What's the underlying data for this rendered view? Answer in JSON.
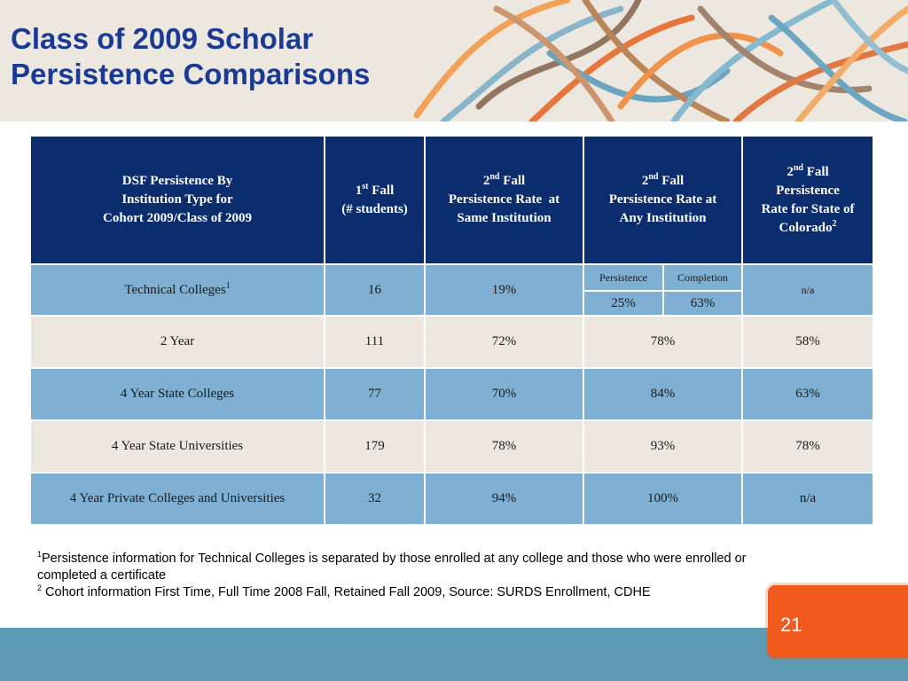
{
  "slide": {
    "title_line1": "Class of 2009 Scholar",
    "title_line2": "Persistence Comparisons",
    "page_number": "21"
  },
  "table": {
    "headers": {
      "col1": [
        "DSF Persistence By",
        "Institution Type for",
        "Cohort 2009/Class of 2009"
      ],
      "col2": {
        "num": "1",
        "sup": "st",
        "l1": " Fall",
        "l2": "(# students)"
      },
      "col3": {
        "num": "2",
        "sup": "nd",
        "l1": " Fall",
        "l2": "Persistence Rate  at",
        "l3": "Same Institution"
      },
      "col4": {
        "num": "2",
        "sup": "nd",
        "l1": " Fall",
        "l2": "Persistence Rate at",
        "l3": "Any Institution"
      },
      "col5": {
        "num": "2",
        "sup": "nd",
        "l1": " Fall",
        "l2": "Persistence",
        "l3": "Rate for State of",
        "l4": "Colorado",
        "l4_sup": "2"
      }
    },
    "technical": {
      "name": "Technical Colleges",
      "name_sup": "1",
      "students": "16",
      "same_rate": "19%",
      "sub_persistence_label": "Persistence",
      "sub_completion_label": "Completion",
      "persistence": "25%",
      "completion": "63%",
      "state_rate": "n/a"
    },
    "rows": [
      {
        "name": "2 Year",
        "students": "111",
        "same_rate": "72%",
        "any_rate": "78%",
        "state_rate": "58%"
      },
      {
        "name": "4 Year State Colleges",
        "students": "77",
        "same_rate": "70%",
        "any_rate": "84%",
        "state_rate": "63%"
      },
      {
        "name": "4 Year State Universities",
        "students": "179",
        "same_rate": "78%",
        "any_rate": "93%",
        "state_rate": "78%"
      },
      {
        "name": "4 Year Private Colleges and Universities",
        "students": "32",
        "same_rate": "94%",
        "any_rate": "100%",
        "state_rate": "n/a"
      }
    ]
  },
  "footnotes": {
    "f1_mark": "1",
    "f1_text": "Persistence information for Technical Colleges  is separated by those enrolled at any college and those who were enrolled or completed a certificate",
    "f2_mark": "2",
    "f2_text": " Cohort information First Time, Full Time 2008 Fall, Retained Fall 2009, Source: SURDS Enrollment, CDHE"
  },
  "colors": {
    "title": "#1b3a93",
    "header_fill": "#0b2d6e",
    "row_blue": "#7fafd2",
    "row_beige": "#ece7df",
    "bottom_band": "#5b9bb4",
    "page_box": "#f05a1c"
  },
  "decor": {
    "name": "abstract-ribbons-graphic"
  }
}
